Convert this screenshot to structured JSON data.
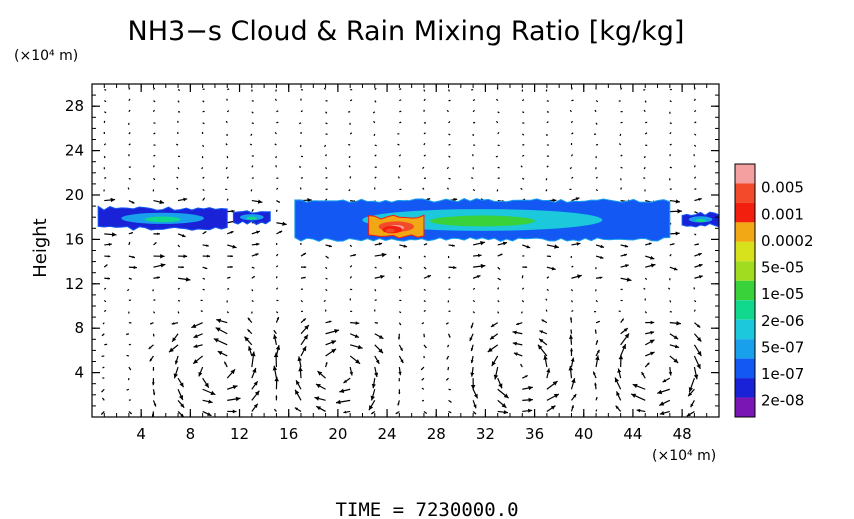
{
  "chart_data": {
    "type": "heatmap",
    "title": "NH3−s Cloud & Rain Mixing Ratio [kg/kg]",
    "ylabel": "Height",
    "y_unit": "(×10⁴ m)",
    "x_unit": "(×10⁴ m)",
    "footer": "TIME  =  7230000.0",
    "xlim": [
      0,
      51
    ],
    "ylim": [
      0,
      30
    ],
    "x_ticks": [
      4,
      8,
      12,
      16,
      20,
      24,
      28,
      32,
      36,
      40,
      44,
      48
    ],
    "y_ticks": [
      4,
      8,
      12,
      16,
      20,
      24,
      28
    ],
    "grid": false,
    "legend": "right",
    "colorbar": {
      "labels": [
        "0.005",
        "0.001",
        "0.0002",
        "5e-05",
        "1e-05",
        "2e-06",
        "5e-07",
        "1e-07",
        "2e-08"
      ],
      "colors": [
        "#f4a0a0",
        "#f24a2a",
        "#f21e0e",
        "#f2a814",
        "#d8e21c",
        "#a2dc20",
        "#3ad23a",
        "#10d88c",
        "#1cc8dc",
        "#18a0ec",
        "#1458f4",
        "#1a22d8",
        "#7a16b4"
      ]
    },
    "cloud_regions": [
      {
        "x": [
          0.5,
          11
        ],
        "y": [
          17,
          18.8
        ],
        "level": "2e-07"
      },
      {
        "x": [
          11.5,
          14.5
        ],
        "y": [
          17.5,
          18.5
        ],
        "level": "2e-07"
      },
      {
        "x": [
          16.5,
          47
        ],
        "y": [
          16,
          19.5
        ],
        "level": "1e-06"
      },
      {
        "x": [
          48,
          51
        ],
        "y": [
          17.3,
          18.3
        ],
        "level": "2e-07"
      },
      {
        "x": [
          22.5,
          27
        ],
        "y": [
          16.3,
          18.0
        ],
        "level": "0.0002"
      }
    ],
    "wind_vectors": "arrow field over the domain; strong circulation cells below 8 (×10⁴ m) near x = 10, 20, 35 and 46"
  }
}
